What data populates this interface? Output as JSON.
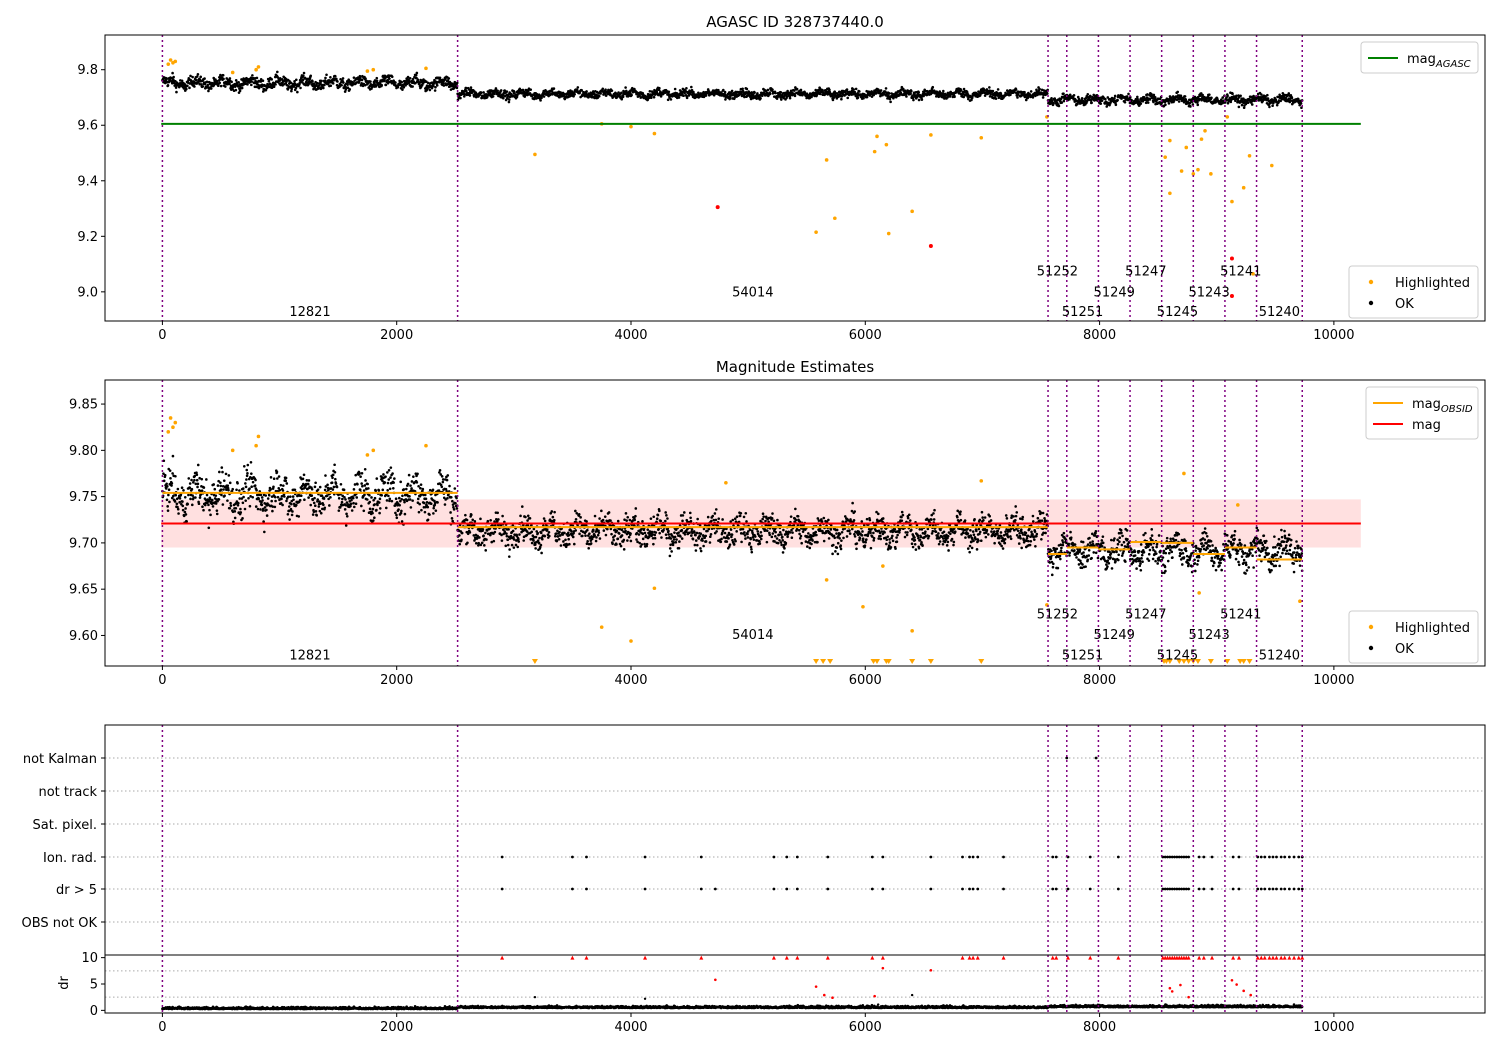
{
  "chart_data": [
    {
      "type": "scatter",
      "title": "AGASC ID 328737440.0",
      "xlim": [
        -490,
        11290
      ],
      "ylim": [
        8.895,
        9.925
      ],
      "yticks": [
        9.0,
        9.2,
        9.4,
        9.6,
        9.8
      ],
      "ytick_labels": [
        "9.0",
        "9.2",
        "9.4",
        "9.6",
        "9.8"
      ],
      "xticks": [
        0,
        2000,
        4000,
        6000,
        8000,
        10000
      ],
      "xtick_labels": [
        "0",
        "2000",
        "4000",
        "6000",
        "8000",
        "10000"
      ],
      "reference_lines": [
        {
          "name": "mag_AGASC",
          "y": 9.605,
          "x_range": [
            -10,
            10230
          ],
          "color": "#008000"
        }
      ],
      "obsid_boundaries": [
        0,
        2520,
        7560,
        7720,
        7990,
        8260,
        8530,
        8800,
        9070,
        9340,
        9730
      ],
      "obsid_labels": [
        {
          "text": "12821",
          "x": 1260,
          "y": 8.93
        },
        {
          "text": "54014",
          "x": 5040,
          "y": 9.0
        },
        {
          "text": "51252",
          "x": 7640,
          "y": 9.075
        },
        {
          "text": "51251",
          "x": 7855,
          "y": 8.93
        },
        {
          "text": "51249",
          "x": 8125,
          "y": 9.0
        },
        {
          "text": "51247",
          "x": 8395,
          "y": 9.075
        },
        {
          "text": "51245",
          "x": 8665,
          "y": 8.93
        },
        {
          "text": "51243",
          "x": 8935,
          "y": 9.0
        },
        {
          "text": "51241",
          "x": 9205,
          "y": 9.075
        },
        {
          "text": "51240",
          "x": 9535,
          "y": 8.93
        }
      ],
      "ok_series": {
        "name": "OK",
        "color": "#000000",
        "segments": [
          {
            "x0": 0,
            "x1": 2520,
            "level": 9.752,
            "spread": 0.018
          },
          {
            "x0": 2520,
            "x1": 7560,
            "level": 9.713,
            "spread": 0.013
          },
          {
            "x0": 7560,
            "x1": 9730,
            "level": 9.692,
            "spread": 0.014
          }
        ]
      },
      "highlighted_series": {
        "name": "Highlighted",
        "color": "#FFA500",
        "points": [
          [
            50,
            9.82
          ],
          [
            70,
            9.835
          ],
          [
            90,
            9.825
          ],
          [
            110,
            9.83
          ],
          [
            600,
            9.79
          ],
          [
            800,
            9.8
          ],
          [
            820,
            9.81
          ],
          [
            1750,
            9.795
          ],
          [
            1800,
            9.8
          ],
          [
            2250,
            9.805
          ],
          [
            3180,
            9.495
          ],
          [
            3750,
            9.605
          ],
          [
            4000,
            9.595
          ],
          [
            4200,
            9.57
          ],
          [
            5670,
            9.475
          ],
          [
            5580,
            9.215
          ],
          [
            5740,
            9.265
          ],
          [
            6080,
            9.505
          ],
          [
            6100,
            9.56
          ],
          [
            6180,
            9.53
          ],
          [
            6200,
            9.21
          ],
          [
            6400,
            9.29
          ],
          [
            6560,
            9.565
          ],
          [
            6990,
            9.555
          ],
          [
            7550,
            9.63
          ],
          [
            8560,
            9.485
          ],
          [
            8600,
            9.355
          ],
          [
            8700,
            9.435
          ],
          [
            8740,
            9.52
          ],
          [
            8800,
            9.425
          ],
          [
            8840,
            9.44
          ],
          [
            8950,
            9.425
          ],
          [
            9090,
            9.63
          ],
          [
            9130,
            9.325
          ],
          [
            9230,
            9.375
          ],
          [
            9280,
            9.49
          ],
          [
            9470,
            9.455
          ],
          [
            9310,
            9.065
          ],
          [
            8600,
            9.545
          ],
          [
            8870,
            9.55
          ],
          [
            8900,
            9.58
          ]
        ]
      },
      "red_points": [
        [
          4740,
          9.305
        ],
        [
          6560,
          9.165
        ],
        [
          9130,
          8.985
        ],
        [
          9130,
          9.12
        ]
      ],
      "legends": [
        {
          "position": "upper right",
          "entries": [
            {
              "label": "mag",
              "sub": "AGASC",
              "kind": "line",
              "color": "#008000"
            }
          ]
        },
        {
          "position": "lower right",
          "entries": [
            {
              "label": "Highlighted",
              "kind": "dot",
              "color": "#FFA500"
            },
            {
              "label": "OK",
              "kind": "dot",
              "color": "#000000"
            }
          ]
        }
      ]
    },
    {
      "type": "scatter",
      "title": "Magnitude Estimates",
      "xlim": [
        -490,
        11290
      ],
      "ylim": [
        9.567,
        9.876
      ],
      "yticks": [
        9.6,
        9.65,
        9.7,
        9.75,
        9.8,
        9.85
      ],
      "ytick_labels": [
        "9.60",
        "9.65",
        "9.70",
        "9.75",
        "9.80",
        "9.85"
      ],
      "xticks": [
        0,
        2000,
        4000,
        6000,
        8000,
        10000
      ],
      "xtick_labels": [
        "0",
        "2000",
        "4000",
        "6000",
        "8000",
        "10000"
      ],
      "mag_line": {
        "name": "mag",
        "y": 9.721,
        "band": [
          9.695,
          9.747
        ],
        "x_range": [
          -10,
          10230
        ],
        "color": "#FF0000"
      },
      "obsid_mag_steps": [
        {
          "x0": 0,
          "x1": 2520,
          "y": 9.754
        },
        {
          "x0": 2520,
          "x1": 7560,
          "y": 9.717
        },
        {
          "x0": 7560,
          "x1": 7720,
          "y": 9.688
        },
        {
          "x0": 7720,
          "x1": 7990,
          "y": 9.695
        },
        {
          "x0": 7990,
          "x1": 8260,
          "y": 9.693
        },
        {
          "x0": 8260,
          "x1": 8530,
          "y": 9.701
        },
        {
          "x0": 8530,
          "x1": 8800,
          "y": 9.7
        },
        {
          "x0": 8800,
          "x1": 9070,
          "y": 9.688
        },
        {
          "x0": 9070,
          "x1": 9340,
          "y": 9.695
        },
        {
          "x0": 9340,
          "x1": 9730,
          "y": 9.682
        }
      ],
      "obsid_boundaries": [
        0,
        2520,
        7560,
        7720,
        7990,
        8260,
        8530,
        8800,
        9070,
        9340,
        9730
      ],
      "obsid_labels": [
        {
          "text": "12821",
          "x": 1260,
          "y": 9.579
        },
        {
          "text": "54014",
          "x": 5040,
          "y": 9.601
        },
        {
          "text": "51252",
          "x": 7640,
          "y": 9.623
        },
        {
          "text": "51251",
          "x": 7855,
          "y": 9.579
        },
        {
          "text": "51249",
          "x": 8125,
          "y": 9.601
        },
        {
          "text": "51247",
          "x": 8395,
          "y": 9.623
        },
        {
          "text": "51245",
          "x": 8665,
          "y": 9.579
        },
        {
          "text": "51243",
          "x": 8935,
          "y": 9.601
        },
        {
          "text": "51241",
          "x": 9205,
          "y": 9.623
        },
        {
          "text": "51240",
          "x": 9535,
          "y": 9.579
        }
      ],
      "ok_series": {
        "name": "OK",
        "color": "#000000",
        "segments": [
          {
            "x0": 0,
            "x1": 2520,
            "level": 9.752,
            "spread": 0.018
          },
          {
            "x0": 2520,
            "x1": 7560,
            "level": 9.713,
            "spread": 0.013
          },
          {
            "x0": 7560,
            "x1": 9730,
            "level": 9.692,
            "spread": 0.014
          }
        ]
      },
      "highlighted_series": {
        "name": "Highlighted",
        "color": "#FFA500",
        "points": [
          [
            50,
            9.82
          ],
          [
            70,
            9.835
          ],
          [
            90,
            9.825
          ],
          [
            110,
            9.83
          ],
          [
            600,
            9.8
          ],
          [
            800,
            9.805
          ],
          [
            820,
            9.815
          ],
          [
            1750,
            9.795
          ],
          [
            1800,
            9.8
          ],
          [
            2250,
            9.805
          ],
          [
            3750,
            9.609
          ],
          [
            4000,
            9.594
          ],
          [
            4200,
            9.651
          ],
          [
            5670,
            9.66
          ],
          [
            5980,
            9.631
          ],
          [
            6150,
            9.675
          ],
          [
            6400,
            9.605
          ],
          [
            7550,
            9.633
          ],
          [
            8850,
            9.646
          ],
          [
            9710,
            9.637
          ],
          [
            4810,
            9.765
          ],
          [
            6990,
            9.767
          ],
          [
            8720,
            9.775
          ],
          [
            9180,
            9.741
          ]
        ]
      },
      "clipped_markers": [
        3180,
        5580,
        5640,
        5700,
        6070,
        6100,
        6180,
        6200,
        6400,
        6560,
        6990,
        8550,
        8570,
        8600,
        8680,
        8720,
        8760,
        8800,
        8840,
        8950,
        9090,
        9200,
        9230,
        9280
      ],
      "legends": [
        {
          "position": "upper right",
          "entries": [
            {
              "label": "mag",
              "sub": "OBSID",
              "kind": "line",
              "color": "#FFA500"
            },
            {
              "label": "mag",
              "kind": "line",
              "color": "#FF0000"
            }
          ]
        },
        {
          "position": "lower right",
          "entries": [
            {
              "label": "Highlighted",
              "kind": "dot",
              "color": "#FFA500"
            },
            {
              "label": "OK",
              "kind": "dot",
              "color": "#000000"
            }
          ]
        }
      ]
    },
    {
      "type": "scatter",
      "title": "",
      "xlim": [
        -490,
        11290
      ],
      "xticks": [
        0,
        2000,
        4000,
        6000,
        8000,
        10000
      ],
      "xtick_labels": [
        "0",
        "2000",
        "4000",
        "6000",
        "8000",
        "10000"
      ],
      "flag_rows": [
        "not Kalman",
        "not track",
        "Sat. pixel.",
        "Ion. rad.",
        "dr > 5",
        "OBS not OK"
      ],
      "flag_events": {
        "Ion. rad.": [
          2900,
          3500,
          3620,
          4120,
          4600,
          5220,
          5330,
          5420,
          5680,
          6060,
          6150,
          6560,
          6830,
          6890,
          6920,
          6960,
          7180,
          7600,
          7630,
          7730,
          7920,
          8160,
          8540,
          8560,
          8580,
          8600,
          8620,
          8640,
          8660,
          8680,
          8700,
          8720,
          8740,
          8760,
          8850,
          8890,
          8960,
          9140,
          9190,
          9350,
          9380,
          9410,
          9450,
          9480,
          9510,
          9550,
          9580,
          9620,
          9660,
          9700,
          9730
        ],
        "dr > 5": [
          2900,
          3500,
          3620,
          4120,
          4600,
          4720,
          5220,
          5330,
          5420,
          5680,
          6060,
          6150,
          6560,
          6830,
          6890,
          6920,
          6960,
          7180,
          7600,
          7630,
          7730,
          7920,
          8160,
          8540,
          8560,
          8580,
          8600,
          8620,
          8640,
          8660,
          8680,
          8700,
          8720,
          8740,
          8760,
          8850,
          8890,
          8960,
          9140,
          9190,
          9350,
          9380,
          9410,
          9450,
          9480,
          9510,
          9550,
          9580,
          9620,
          9660,
          9700,
          9730
        ],
        "not Kalman": [
          7720,
          7970
        ]
      },
      "obsid_boundaries": [
        0,
        2520,
        7560,
        7720,
        7990,
        8260,
        8530,
        8800,
        9070,
        9340,
        9730
      ],
      "dr_panel": {
        "ylabel": "dr",
        "ylim": [
          -0.5,
          10.5
        ],
        "yticks": [
          0,
          5,
          10
        ],
        "ytick_labels": [
          "0",
          "5",
          "10"
        ],
        "baseline": [
          {
            "x0": 0,
            "x1": 2520,
            "level": 0.25
          },
          {
            "x0": 2520,
            "x1": 7560,
            "level": 0.45
          },
          {
            "x0": 7560,
            "x1": 9730,
            "level": 0.6
          }
        ],
        "capped_red": [
          2900,
          3500,
          3620,
          4120,
          4600,
          5220,
          5330,
          5420,
          5680,
          6060,
          6150,
          6830,
          6890,
          6920,
          6960,
          7180,
          7600,
          7630,
          7730,
          7920,
          8160,
          8540,
          8560,
          8580,
          8600,
          8620,
          8640,
          8660,
          8680,
          8700,
          8720,
          8740,
          8760,
          8850,
          8890,
          8960,
          9140,
          9190,
          9350,
          9380,
          9410,
          9450,
          9480,
          9510,
          9550,
          9580,
          9620,
          9660,
          9700,
          9730
        ],
        "red_points": [
          [
            4720,
            5.8
          ],
          [
            5580,
            4.5
          ],
          [
            5650,
            2.9
          ],
          [
            5720,
            2.4
          ],
          [
            6080,
            2.7
          ],
          [
            6150,
            8.0
          ],
          [
            6560,
            7.6
          ],
          [
            8600,
            4.2
          ],
          [
            8620,
            3.6
          ],
          [
            8690,
            4.8
          ],
          [
            8760,
            2.5
          ],
          [
            9130,
            5.7
          ],
          [
            9170,
            4.9
          ],
          [
            9230,
            3.7
          ],
          [
            9290,
            2.9
          ]
        ],
        "black_points": [
          [
            3180,
            2.5
          ],
          [
            4120,
            2.2
          ],
          [
            5590,
            0.9
          ],
          [
            6110,
            1.1
          ],
          [
            6400,
            2.9
          ]
        ]
      }
    }
  ]
}
